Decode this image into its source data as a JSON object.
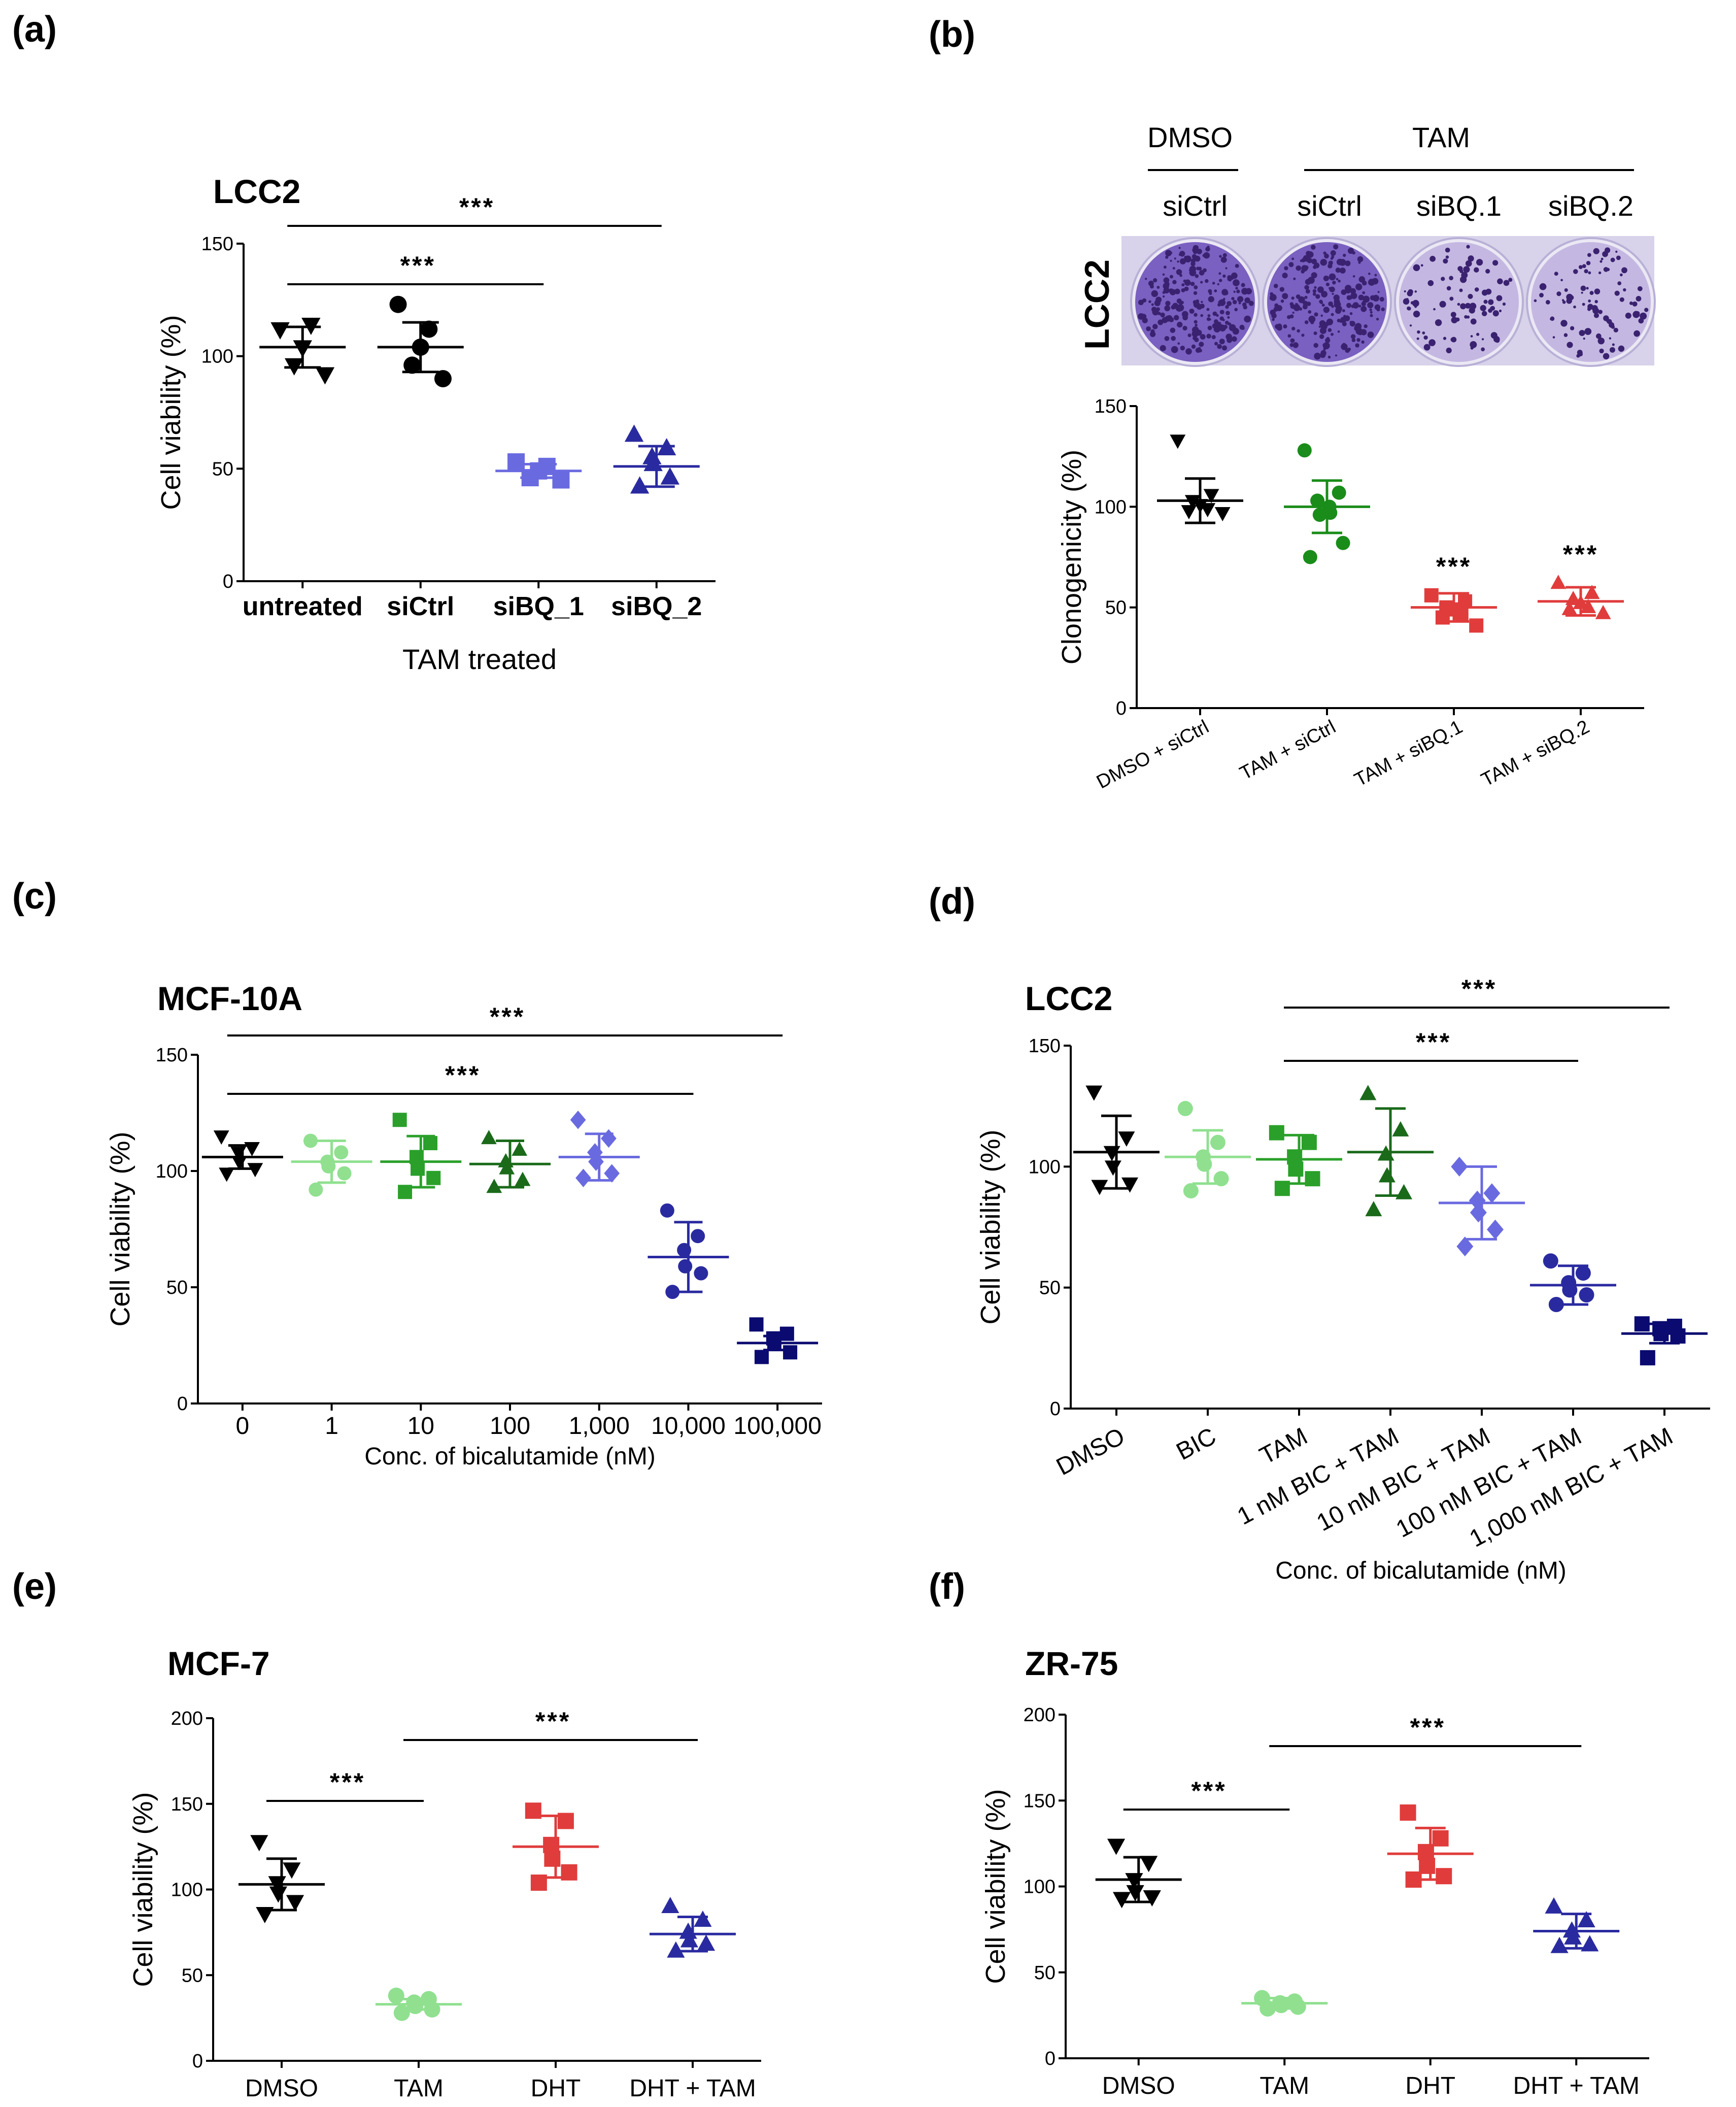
{
  "figure": {
    "panels": [
      {
        "id": "a",
        "letter": "(a)",
        "chart_data": {
          "type": "scatter",
          "title": "LCC2",
          "ylabel": "Cell viability (%)",
          "xlabel": "TAM treated",
          "ylim": [
            0,
            150
          ],
          "yticks": [
            0,
            50,
            100,
            150
          ],
          "categories": [
            "untreated",
            "siCtrl",
            "siBQ_1",
            "siBQ_2"
          ],
          "colors": [
            "#000000",
            "#000000",
            "#6a6ae0",
            "#2a2aa0"
          ],
          "markers": [
            "triangle-down",
            "circle",
            "square",
            "triangle-up"
          ],
          "groups": [
            {
              "points": [
                112,
                114,
                104,
                96,
                92
              ],
              "mean": 104,
              "sd": 9
            },
            {
              "points": [
                123,
                112,
                104,
                96,
                90
              ],
              "mean": 104,
              "sd": 11
            },
            {
              "points": [
                53,
                51,
                49,
                46,
                45
              ],
              "mean": 49,
              "sd": 3
            },
            {
              "points": [
                65,
                59,
                55,
                52,
                46,
                42
              ],
              "mean": 51,
              "sd": 9
            }
          ],
          "significance": [
            {
              "from": 0,
              "to": 2,
              "label": "***"
            },
            {
              "from": 0,
              "to": 3,
              "label": "***"
            }
          ]
        }
      },
      {
        "id": "b",
        "letter": "(b)",
        "plate_image": {
          "cell_line": "LCC2",
          "group_labels": [
            "DMSO",
            "TAM"
          ],
          "well_labels": [
            "siCtrl",
            "siCtrl",
            "siBQ.1",
            "siBQ.2"
          ],
          "well_densities": [
            0.9,
            0.85,
            0.35,
            0.35
          ]
        },
        "chart_data": {
          "type": "scatter",
          "title": "",
          "ylabel": "Clonogenicity (%)",
          "xlabel": "",
          "ylim": [
            0,
            150
          ],
          "yticks": [
            0,
            50,
            100,
            150
          ],
          "categories": [
            "DMSO + siCtrl",
            "TAM + siCtrl",
            "TAM + siBQ.1",
            "TAM + siBQ.2"
          ],
          "colors": [
            "#000000",
            "#1a8c1a",
            "#e03c3c",
            "#e03c3c"
          ],
          "markers": [
            "triangle-down",
            "circle",
            "square",
            "triangle-up"
          ],
          "groups": [
            {
              "points": [
                133,
                106,
                103,
                101,
                99,
                98,
                97
              ],
              "mean": 103,
              "sd": 11
            },
            {
              "points": [
                128,
                107,
                103,
                100,
                97,
                96,
                82,
                75
              ],
              "mean": 100,
              "sd": 13
            },
            {
              "points": [
                56,
                53,
                50,
                49,
                47,
                45,
                41
              ],
              "mean": 50,
              "sd": 7
            },
            {
              "points": [
                62,
                57,
                54,
                52,
                50,
                49,
                47
              ],
              "mean": 53,
              "sd": 7
            }
          ],
          "significance": [
            {
              "at": 2,
              "label": "***"
            },
            {
              "at": 3,
              "label": "***"
            }
          ]
        }
      },
      {
        "id": "c",
        "letter": "(c)",
        "chart_data": {
          "type": "scatter",
          "title": "MCF-10A",
          "ylabel": "Cell viability (%)",
          "xlabel": "Conc. of bicalutamide (nM)",
          "ylim": [
            0,
            150
          ],
          "yticks": [
            0,
            50,
            100,
            150
          ],
          "categories": [
            "0",
            "1",
            "10",
            "100",
            "1,000",
            "10,000",
            "100,000"
          ],
          "colors": [
            "#000000",
            "#90e090",
            "#2aa02a",
            "#1a6a1a",
            "#6a6ae0",
            "#2a2aa0",
            "#0a0a70"
          ],
          "markers": [
            "triangle-down",
            "circle",
            "square",
            "triangle-up",
            "diamond",
            "circle",
            "square"
          ],
          "groups": [
            {
              "points": [
                115,
                110,
                108,
                104,
                101,
                99
              ],
              "mean": 106,
              "sd": 5
            },
            {
              "points": [
                113,
                108,
                104,
                102,
                99,
                92
              ],
              "mean": 104,
              "sd": 9
            },
            {
              "points": [
                122,
                112,
                106,
                101,
                97,
                91
              ],
              "mean": 104,
              "sd": 11
            },
            {
              "points": [
                114,
                109,
                104,
                101,
                96,
                93
              ],
              "mean": 103,
              "sd": 10
            },
            {
              "points": [
                122,
                114,
                108,
                104,
                99,
                97
              ],
              "mean": 106,
              "sd": 10
            },
            {
              "points": [
                83,
                72,
                66,
                59,
                56,
                48
              ],
              "mean": 63,
              "sd": 15
            },
            {
              "points": [
                34,
                30,
                28,
                26,
                22,
                20
              ],
              "mean": 26,
              "sd": 3
            }
          ],
          "significance": [
            {
              "from": 0,
              "to": 5,
              "label": "***"
            },
            {
              "from": 0,
              "to": 6,
              "label": "***"
            }
          ]
        }
      },
      {
        "id": "d",
        "letter": "(d)",
        "chart_data": {
          "type": "scatter",
          "title": "LCC2",
          "ylabel": "Cell viability (%)",
          "xlabel": "Conc. of bicalutamide (nM)",
          "ylim": [
            0,
            150
          ],
          "yticks": [
            0,
            50,
            100,
            150
          ],
          "categories": [
            "DMSO",
            "BIC",
            "TAM",
            "1 nM BIC + TAM",
            "10 nM BIC + TAM",
            "100 nM BIC + TAM",
            "1,000 nM BIC + TAM"
          ],
          "colors": [
            "#000000",
            "#90e090",
            "#2aa02a",
            "#1a6a1a",
            "#6a6ae0",
            "#2a2aa0",
            "#0a0a70"
          ],
          "markers": [
            "triangle-down",
            "circle",
            "square",
            "triangle-up",
            "diamond",
            "circle",
            "square"
          ],
          "groups": [
            {
              "points": [
                131,
                112,
                106,
                100,
                93,
                92
              ],
              "mean": 106,
              "sd": 15
            },
            {
              "points": [
                124,
                110,
                104,
                101,
                95,
                90
              ],
              "mean": 104,
              "sd": 11
            },
            {
              "points": [
                114,
                110,
                104,
                99,
                95,
                91
              ],
              "mean": 103,
              "sd": 10
            },
            {
              "points": [
                130,
                115,
                105,
                96,
                89,
                82
              ],
              "mean": 106,
              "sd": 18
            },
            {
              "points": [
                100,
                89,
                86,
                81,
                74,
                67
              ],
              "mean": 85,
              "sd": 15
            },
            {
              "points": [
                61,
                56,
                52,
                49,
                47,
                43
              ],
              "mean": 51,
              "sd": 8
            },
            {
              "points": [
                35,
                34,
                33,
                31,
                30,
                21
              ],
              "mean": 31,
              "sd": 4
            }
          ],
          "significance": [
            {
              "from": 2,
              "to": 5,
              "label": "***"
            },
            {
              "from": 2,
              "to": 6,
              "label": "***"
            }
          ]
        }
      },
      {
        "id": "e",
        "letter": "(e)",
        "chart_data": {
          "type": "scatter",
          "title": "MCF-7",
          "ylabel": "Cell viability (%)",
          "xlabel": "",
          "ylim": [
            0,
            200
          ],
          "yticks": [
            0,
            50,
            100,
            150,
            200
          ],
          "categories": [
            "DMSO",
            "TAM",
            "DHT",
            "DHT + TAM"
          ],
          "colors": [
            "#000000",
            "#90e090",
            "#e03c3c",
            "#2a2aa0"
          ],
          "markers": [
            "triangle-down",
            "circle",
            "square",
            "triangle-up"
          ],
          "groups": [
            {
              "points": [
                128,
                112,
                104,
                98,
                93,
                86
              ],
              "mean": 103,
              "sd": 15
            },
            {
              "points": [
                38,
                36,
                34,
                32,
                30,
                28
              ],
              "mean": 33,
              "sd": 3
            },
            {
              "points": [
                146,
                140,
                126,
                118,
                110,
                104
              ],
              "mean": 125,
              "sd": 18
            },
            {
              "points": [
                90,
                82,
                75,
                70,
                68,
                64
              ],
              "mean": 74,
              "sd": 10
            }
          ],
          "significance": [
            {
              "from": 0,
              "to": 1,
              "label": "***"
            },
            {
              "from": 1,
              "to": 3,
              "label": "***"
            }
          ]
        }
      },
      {
        "id": "f",
        "letter": "(f)",
        "chart_data": {
          "type": "scatter",
          "title": "ZR-75",
          "ylabel": "Cell viability (%)",
          "xlabel": "",
          "ylim": [
            0,
            200
          ],
          "yticks": [
            0,
            50,
            100,
            150,
            200
          ],
          "categories": [
            "DMSO",
            "TAM",
            "DHT",
            "DHT + TAM"
          ],
          "colors": [
            "#000000",
            "#90e090",
            "#e03c3c",
            "#2a2aa0"
          ],
          "markers": [
            "triangle-down",
            "circle",
            "square",
            "triangle-up"
          ],
          "groups": [
            {
              "points": [
                124,
                114,
                104,
                97,
                94,
                93
              ],
              "mean": 104,
              "sd": 13
            },
            {
              "points": [
                35,
                33,
                32,
                31,
                30,
                29
              ],
              "mean": 32,
              "sd": 3
            },
            {
              "points": [
                143,
                128,
                120,
                112,
                106,
                104
              ],
              "mean": 119,
              "sd": 15
            },
            {
              "points": [
                88,
                80,
                74,
                70,
                66,
                65
              ],
              "mean": 74,
              "sd": 10
            }
          ],
          "significance": [
            {
              "from": 0,
              "to": 1,
              "label": "***"
            },
            {
              "from": 1,
              "to": 3,
              "label": "***"
            }
          ]
        }
      }
    ]
  }
}
